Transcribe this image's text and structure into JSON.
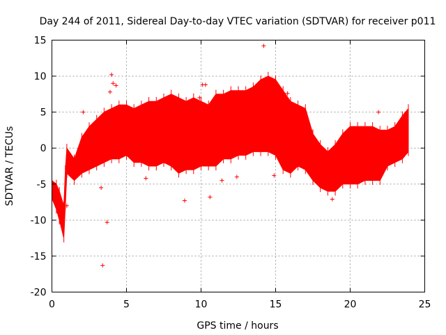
{
  "chart_data": {
    "type": "scatter",
    "title": "Day 244 of 2011, Sidereal Day-to-day VTEC variation (SDTVAR) for receiver p011",
    "xlabel": "GPS time / hours",
    "ylabel": "SDTVAR / TECUs",
    "xlim": [
      0,
      25
    ],
    "ylim": [
      -20,
      15
    ],
    "x_ticks": [
      0,
      5,
      10,
      15,
      20,
      25
    ],
    "y_ticks": [
      -20,
      -15,
      -10,
      -5,
      0,
      5,
      10,
      15
    ],
    "x_tick_labels": [
      "0",
      "5",
      "10",
      "15",
      "20",
      "25"
    ],
    "y_tick_labels": [
      "-20",
      "-15",
      "-10",
      "-5",
      "0",
      "5",
      "10",
      "15"
    ],
    "grid": true,
    "marker": "+",
    "color": "#ff0000",
    "envelope": {
      "name": "SDTVAR band",
      "x": [
        0.0,
        0.3,
        0.5,
        0.8,
        0.9,
        1.0,
        1.5,
        2.0,
        2.5,
        3.0,
        3.5,
        4.0,
        4.5,
        5.0,
        5.5,
        6.0,
        6.5,
        7.0,
        7.5,
        8.0,
        8.5,
        9.0,
        9.5,
        10.0,
        10.5,
        11.0,
        11.5,
        12.0,
        12.5,
        13.0,
        13.5,
        14.0,
        14.5,
        15.0,
        15.5,
        16.0,
        16.5,
        17.0,
        17.5,
        18.0,
        18.5,
        19.0,
        19.5,
        20.0,
        20.5,
        21.0,
        21.5,
        22.0,
        22.5,
        23.0,
        23.5,
        23.9
      ],
      "upper": [
        -4.5,
        -5.0,
        -6.0,
        -8.0,
        -3.0,
        0.0,
        -1.5,
        1.5,
        3.0,
        4.0,
        5.0,
        5.5,
        6.0,
        6.0,
        5.5,
        6.0,
        6.5,
        6.5,
        7.0,
        7.5,
        7.0,
        6.5,
        7.0,
        6.5,
        6.0,
        7.5,
        7.5,
        8.0,
        8.0,
        8.0,
        8.5,
        9.5,
        10.0,
        9.5,
        8.0,
        6.5,
        6.0,
        5.5,
        2.0,
        0.5,
        -0.5,
        0.5,
        2.0,
        3.0,
        3.0,
        3.0,
        3.0,
        2.5,
        2.5,
        3.0,
        4.5,
        5.5
      ],
      "lower": [
        -7.0,
        -8.5,
        -10.0,
        -12.5,
        -8.0,
        -3.5,
        -4.5,
        -3.5,
        -3.0,
        -2.5,
        -2.0,
        -1.5,
        -1.5,
        -1.0,
        -2.0,
        -2.0,
        -2.5,
        -2.5,
        -2.0,
        -2.5,
        -3.5,
        -3.0,
        -3.0,
        -2.5,
        -2.5,
        -2.5,
        -1.5,
        -1.5,
        -1.0,
        -1.0,
        -0.5,
        -0.5,
        -0.5,
        -1.0,
        -3.0,
        -3.5,
        -2.5,
        -3.0,
        -4.5,
        -5.5,
        -6.0,
        -6.0,
        -5.0,
        -5.0,
        -5.0,
        -4.5,
        -4.5,
        -4.5,
        -2.5,
        -2.0,
        -1.5,
        -0.5
      ]
    },
    "outliers": {
      "x": [
        14.2,
        3.4,
        3.7,
        8.9,
        4.0,
        4.3,
        10.1,
        9.9,
        10.3,
        4.1,
        3.9,
        2.1,
        1.0,
        6.3,
        10.6,
        11.4,
        12.4,
        14.9,
        15.8,
        18.8,
        21.9,
        4.0,
        3.3
      ],
      "y": [
        14.2,
        -16.3,
        -10.3,
        -7.3,
        10.2,
        8.7,
        8.8,
        7.0,
        8.8,
        9.0,
        7.8,
        5.0,
        -8.0,
        -4.2,
        -6.8,
        -4.5,
        -4.0,
        -3.8,
        7.6,
        -7.1,
        5.0,
        5.4,
        -5.5
      ]
    }
  }
}
